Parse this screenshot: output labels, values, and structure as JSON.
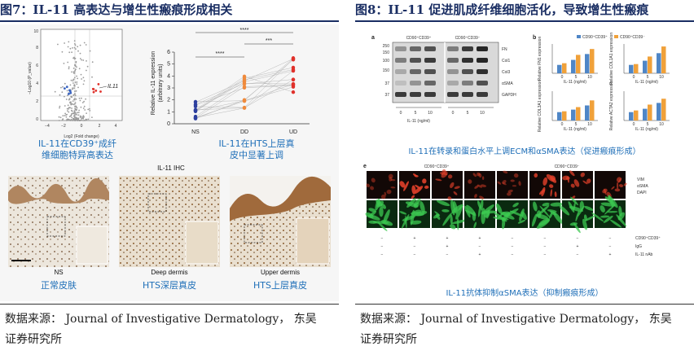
{
  "left": {
    "title": "图7：IL-11 高表达与增生性瘢痕形成相关",
    "volcano": {
      "ylabel": "−Log10 (P_value)",
      "xlabel": "Log2 (Fold change)",
      "xticks": [
        "−4",
        "−2",
        "0",
        "2",
        "4"
      ],
      "yticks": [
        "0",
        "2",
        "4",
        "6",
        "8",
        "10"
      ],
      "gene_label": "IL11",
      "caption_line1": "IL-11在CD39⁺成纤",
      "caption_line2": "维细胞特异高表达"
    },
    "dotplot": {
      "ylabel_line1": "Relative IL-11 expression",
      "ylabel_line2": "(arbitrary units)",
      "yticks": [
        "0",
        "1",
        "2",
        "3",
        "4",
        "5",
        "6"
      ],
      "categories": [
        "NS",
        "DD",
        "UD"
      ],
      "sig_top": "****",
      "sig_left": "****",
      "sig_right": "***",
      "colors": {
        "NS": "#2d3f9e",
        "DD": "#ef8a3c",
        "UD": "#e0312b"
      },
      "caption_line1": "IL-11在HTS上层真",
      "caption_line2": "皮中显著上调"
    },
    "ihc": {
      "header": "IL-11 IHC",
      "labels": [
        "NS",
        "Deep dermis",
        "Upper dermis"
      ],
      "captions": [
        "正常皮肤",
        "HTS深层真皮",
        "HTS上层真皮"
      ]
    },
    "source_line1": "数据来源： Journal of Investigative Dermatology， 东吴",
    "source_line2": "证券研究所"
  },
  "right": {
    "title": "图8：IL-11 促进肌成纤维细胞活化，导致增生性瘢痕",
    "panel_a": {
      "letter": "a",
      "group_left": "CD90⁺CD39⁺",
      "group_right": "CD90⁺CD39⁻",
      "mw": [
        "250",
        "150",
        "100",
        "150",
        "37",
        "37"
      ],
      "bands": [
        "FN",
        "Col1",
        "Col3",
        "αSMA",
        "GAPDH"
      ],
      "doses": [
        "0",
        "5",
        "10",
        "0",
        "5",
        "10"
      ],
      "xlabel": "IL-11 (ng/ml)"
    },
    "panel_b": {
      "letter": "b",
      "legend": [
        "CD90⁺CD39⁺",
        "CD90⁺CD39⁻"
      ],
      "colors": [
        "#4f86c6",
        "#f0a13a"
      ],
      "ylabels": [
        "Relative FN1 expression",
        "Relative COL1A1 expression",
        "Relative COL3A1 expression",
        "Relative ACTA2 expression"
      ],
      "doses": [
        "0",
        "5",
        "10"
      ],
      "xlabel": "IL-11 (ng/ml)"
    },
    "caption_ab": "IL-11在转录和蛋白水平上调ECM和αSMA表达（促进瘢痕形成）",
    "panel_e": {
      "letter": "e",
      "group_left": "CD90⁺CD39⁺",
      "group_right": "CD90⁺CD39⁻",
      "legend": [
        "VIM",
        "αSMA",
        "DAPI"
      ],
      "legend_colors": [
        "#28b34a",
        "#e0402a",
        "#3656c8"
      ],
      "rows": [
        {
          "label": "CD90⁺CD39⁺",
          "marks": [
            "−",
            "+",
            "+",
            "+",
            "−",
            "−",
            "−",
            "−"
          ]
        },
        {
          "label": "IgG",
          "marks": [
            "−",
            "−",
            "+",
            "−",
            "−",
            "−",
            "+",
            "−"
          ]
        },
        {
          "label": "IL-11 nAb",
          "marks": [
            "−",
            "−",
            "−",
            "+",
            "−",
            "−",
            "−",
            "+"
          ]
        }
      ]
    },
    "caption_e": "IL-11抗体抑制αSMA表达（抑制瘢痕形成）",
    "source_line1": "数据来源： Journal of Investigative Dermatology， 东吴",
    "source_line2": "证券研究所"
  }
}
